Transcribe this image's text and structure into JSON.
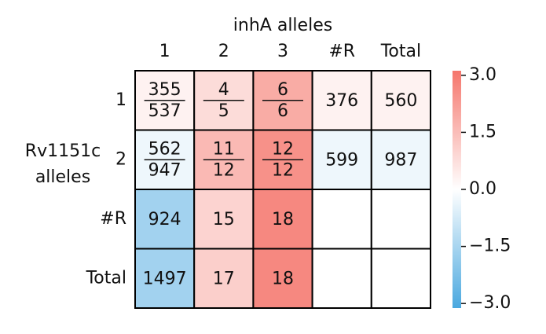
{
  "chart_data": {
    "type": "heatmap",
    "x_title": "inhA alleles",
    "y_title": [
      "Rv1151c",
      "alleles"
    ],
    "columns": [
      "1",
      "2",
      "3",
      "#R",
      "Total"
    ],
    "rows": [
      "1",
      "2",
      "#R",
      "Total"
    ],
    "values": [
      [
        0.3,
        0.8,
        1.9,
        0.3,
        0.3
      ],
      [
        -0.3,
        1.6,
        2.5,
        -0.3,
        -0.3
      ],
      [
        -1.6,
        1.0,
        2.7,
        null,
        null
      ],
      [
        -1.6,
        1.1,
        2.7,
        null,
        null
      ]
    ],
    "annotations": [
      [
        {
          "numerator": 355,
          "denominator": 537
        },
        {
          "numerator": 4,
          "denominator": 5
        },
        {
          "numerator": 6,
          "denominator": 6
        },
        376,
        560
      ],
      [
        {
          "numerator": 562,
          "denominator": 947
        },
        {
          "numerator": 11,
          "denominator": 12
        },
        {
          "numerator": 12,
          "denominator": 12
        },
        599,
        987
      ],
      [
        924,
        15,
        18,
        null,
        null
      ],
      [
        1497,
        17,
        18,
        null,
        null
      ]
    ],
    "colormap": [
      "#4aa8df",
      "#ffffff",
      "#f5766c"
    ],
    "clim": [
      -3.12,
      3.12
    ],
    "cticks": [
      {
        "value": 3.0,
        "label": "3.0"
      },
      {
        "value": 1.5,
        "label": "1.5"
      },
      {
        "value": 0.0,
        "label": "0.0"
      },
      {
        "value": -1.5,
        "label": "−1.5"
      },
      {
        "value": -3.0,
        "label": "−3.0"
      }
    ]
  }
}
